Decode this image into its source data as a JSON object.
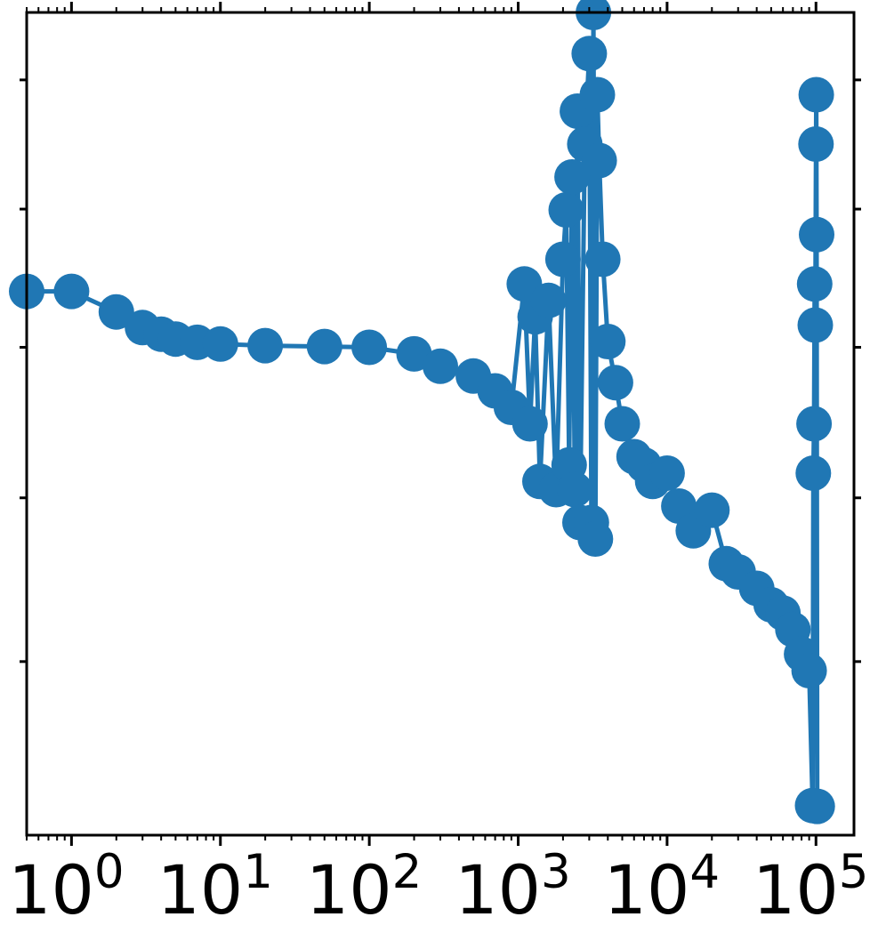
{
  "chart_data": {
    "type": "scatter",
    "title": "",
    "xlabel": "",
    "ylabel": "",
    "x_scale": "log",
    "xlim": [
      0.5,
      180000
    ],
    "ylim": [
      0,
      1
    ],
    "grid": false,
    "legend": "none",
    "marker": "circle",
    "connected": true,
    "color": "#2077b4",
    "x_ticks": [
      {
        "base": "10",
        "exp": "0",
        "value": 1
      },
      {
        "base": "10",
        "exp": "1",
        "value": 10
      },
      {
        "base": "10",
        "exp": "2",
        "value": 100
      },
      {
        "base": "10",
        "exp": "3",
        "value": 1000
      },
      {
        "base": "10",
        "exp": "4",
        "value": 10000
      },
      {
        "base": "10",
        "exp": "5",
        "value": 100000
      }
    ],
    "y_ticks_unlabeled": [
      0.211,
      0.41,
      0.593,
      0.761,
      0.918
    ],
    "series": [
      {
        "values": [
          [
            0.5,
            0.661
          ],
          [
            1,
            0.661
          ],
          [
            2,
            0.636
          ],
          [
            3,
            0.617
          ],
          [
            4,
            0.609
          ],
          [
            5,
            0.603
          ],
          [
            7,
            0.599
          ],
          [
            10,
            0.597
          ],
          [
            20,
            0.595
          ],
          [
            50,
            0.594
          ],
          [
            100,
            0.593
          ],
          [
            200,
            0.585
          ],
          [
            300,
            0.57
          ],
          [
            500,
            0.558
          ],
          [
            700,
            0.54
          ],
          [
            900,
            0.52
          ],
          [
            1100,
            0.67
          ],
          [
            1200,
            0.5
          ],
          [
            1300,
            0.63
          ],
          [
            1400,
            0.43
          ],
          [
            1600,
            0.65
          ],
          [
            1800,
            0.42
          ],
          [
            2000,
            0.7
          ],
          [
            2100,
            0.76
          ],
          [
            2200,
            0.45
          ],
          [
            2300,
            0.8
          ],
          [
            2400,
            0.42
          ],
          [
            2500,
            0.88
          ],
          [
            2600,
            0.38
          ],
          [
            2800,
            0.84
          ],
          [
            3000,
            0.95
          ],
          [
            3100,
            0.38
          ],
          [
            3200,
            1.0
          ],
          [
            3300,
            0.36
          ],
          [
            3400,
            0.9
          ],
          [
            3500,
            0.82
          ],
          [
            3700,
            0.7
          ],
          [
            4000,
            0.6
          ],
          [
            4500,
            0.55
          ],
          [
            5000,
            0.5
          ],
          [
            6000,
            0.46
          ],
          [
            7000,
            0.45
          ],
          [
            8000,
            0.43
          ],
          [
            10000,
            0.44
          ],
          [
            12000,
            0.4
          ],
          [
            15000,
            0.37
          ],
          [
            20000,
            0.395
          ],
          [
            25000,
            0.33
          ],
          [
            30000,
            0.32
          ],
          [
            40000,
            0.3
          ],
          [
            50000,
            0.28
          ],
          [
            60000,
            0.27
          ],
          [
            70000,
            0.25
          ],
          [
            80000,
            0.22
          ],
          [
            90000,
            0.2
          ],
          [
            95000,
            0.036
          ],
          [
            96000,
            0.44
          ],
          [
            97000,
            0.5
          ],
          [
            98000,
            0.67
          ],
          [
            99000,
            0.62
          ],
          [
            100000,
            0.84
          ],
          [
            100500,
            0.9
          ],
          [
            101000,
            0.73
          ],
          [
            102000,
            0.035
          ]
        ]
      }
    ]
  }
}
